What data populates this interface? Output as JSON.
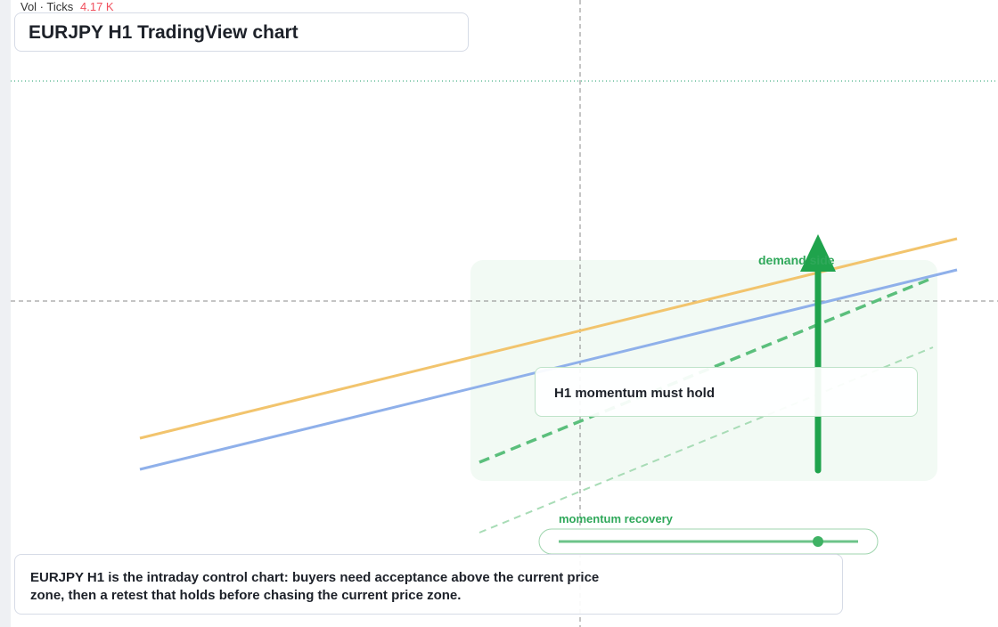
{
  "legend": {
    "label": "Vol · Ticks",
    "value": "4.17 K"
  },
  "header": {
    "title": "EURJPY H1 TradingView chart"
  },
  "annotations": {
    "demand": "demand side",
    "momentum": "H1 momentum must hold",
    "recovery": "momentum recovery"
  },
  "caption": {
    "line1": "EURJPY H1 is the intraday control chart: buyers need acceptance above the current price",
    "line2": "zone, then a retest that holds before chasing the current price zone."
  }
}
